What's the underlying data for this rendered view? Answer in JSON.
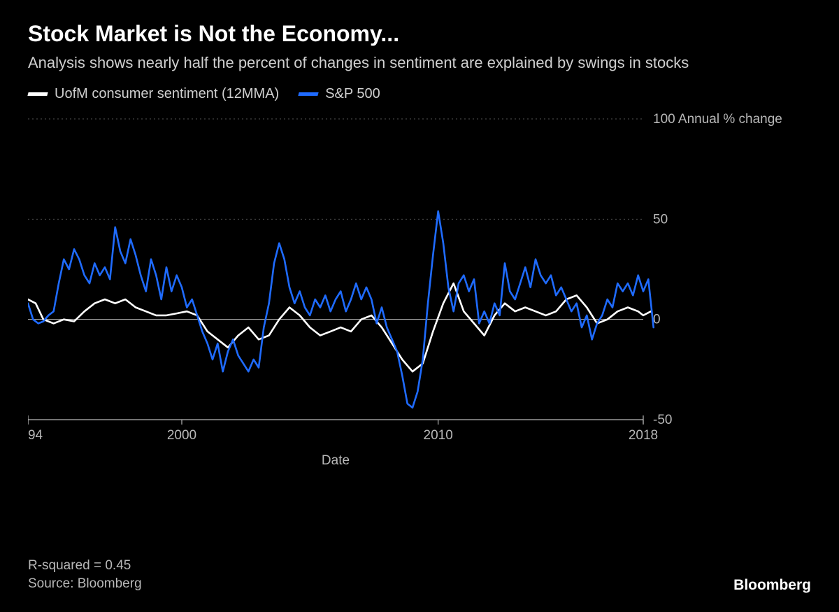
{
  "title": "Stock Market is Not the Economy...",
  "subtitle": "Analysis shows nearly half the percent of changes in sentiment are explained by swings in stocks",
  "legend": {
    "series1": {
      "label": "UofM consumer sentiment (12MMA)",
      "color": "#ffffff"
    },
    "series2": {
      "label": "S&P 500",
      "color": "#1f6bff"
    }
  },
  "chart": {
    "type": "line",
    "background_color": "#000000",
    "grid_color": "#555555",
    "axis_color": "#b8b8b8",
    "tick_color": "#b8b8b8",
    "x": {
      "label": "Date",
      "min": 1994,
      "max": 2018,
      "ticks": [
        1994,
        2000,
        2010,
        2018
      ]
    },
    "y": {
      "label_suffix": "Annual % change",
      "min": -50,
      "max": 100,
      "ticks": [
        -50,
        0,
        50,
        100
      ]
    },
    "line_width": 2.6,
    "series": [
      {
        "name": "UofM consumer sentiment (12MMA)",
        "color": "#ffffff",
        "data": [
          [
            1994.0,
            10
          ],
          [
            1994.3,
            8
          ],
          [
            1994.6,
            0
          ],
          [
            1995.0,
            -2
          ],
          [
            1995.4,
            0
          ],
          [
            1995.8,
            -1
          ],
          [
            1996.2,
            4
          ],
          [
            1996.6,
            8
          ],
          [
            1997.0,
            10
          ],
          [
            1997.4,
            8
          ],
          [
            1997.8,
            10
          ],
          [
            1998.2,
            6
          ],
          [
            1998.6,
            4
          ],
          [
            1999.0,
            2
          ],
          [
            1999.4,
            2
          ],
          [
            1999.8,
            3
          ],
          [
            2000.2,
            4
          ],
          [
            2000.6,
            2
          ],
          [
            2001.0,
            -6
          ],
          [
            2001.4,
            -10
          ],
          [
            2001.8,
            -14
          ],
          [
            2002.2,
            -8
          ],
          [
            2002.6,
            -4
          ],
          [
            2003.0,
            -10
          ],
          [
            2003.4,
            -8
          ],
          [
            2003.8,
            0
          ],
          [
            2004.2,
            6
          ],
          [
            2004.6,
            2
          ],
          [
            2005.0,
            -4
          ],
          [
            2005.4,
            -8
          ],
          [
            2005.8,
            -6
          ],
          [
            2006.2,
            -4
          ],
          [
            2006.6,
            -6
          ],
          [
            2007.0,
            0
          ],
          [
            2007.4,
            2
          ],
          [
            2007.8,
            -4
          ],
          [
            2008.2,
            -12
          ],
          [
            2008.6,
            -20
          ],
          [
            2009.0,
            -26
          ],
          [
            2009.4,
            -22
          ],
          [
            2009.8,
            -6
          ],
          [
            2010.2,
            8
          ],
          [
            2010.6,
            18
          ],
          [
            2011.0,
            4
          ],
          [
            2011.4,
            -2
          ],
          [
            2011.8,
            -8
          ],
          [
            2012.2,
            2
          ],
          [
            2012.6,
            8
          ],
          [
            2013.0,
            4
          ],
          [
            2013.4,
            6
          ],
          [
            2013.8,
            4
          ],
          [
            2014.2,
            2
          ],
          [
            2014.6,
            4
          ],
          [
            2015.0,
            10
          ],
          [
            2015.4,
            12
          ],
          [
            2015.8,
            6
          ],
          [
            2016.2,
            -2
          ],
          [
            2016.6,
            0
          ],
          [
            2017.0,
            4
          ],
          [
            2017.4,
            6
          ],
          [
            2017.8,
            4
          ],
          [
            2018.0,
            2
          ],
          [
            2018.3,
            4
          ]
        ]
      },
      {
        "name": "S&P 500",
        "color": "#1f6bff",
        "data": [
          [
            1994.0,
            8
          ],
          [
            1994.2,
            0
          ],
          [
            1994.4,
            -2
          ],
          [
            1994.6,
            -1
          ],
          [
            1994.8,
            2
          ],
          [
            1995.0,
            4
          ],
          [
            1995.2,
            18
          ],
          [
            1995.4,
            30
          ],
          [
            1995.6,
            25
          ],
          [
            1995.8,
            35
          ],
          [
            1996.0,
            30
          ],
          [
            1996.2,
            22
          ],
          [
            1996.4,
            18
          ],
          [
            1996.6,
            28
          ],
          [
            1996.8,
            22
          ],
          [
            1997.0,
            26
          ],
          [
            1997.2,
            20
          ],
          [
            1997.4,
            46
          ],
          [
            1997.6,
            34
          ],
          [
            1997.8,
            28
          ],
          [
            1998.0,
            40
          ],
          [
            1998.2,
            32
          ],
          [
            1998.4,
            22
          ],
          [
            1998.6,
            14
          ],
          [
            1998.8,
            30
          ],
          [
            1999.0,
            22
          ],
          [
            1999.2,
            10
          ],
          [
            1999.4,
            26
          ],
          [
            1999.6,
            14
          ],
          [
            1999.8,
            22
          ],
          [
            2000.0,
            16
          ],
          [
            2000.2,
            6
          ],
          [
            2000.4,
            10
          ],
          [
            2000.6,
            2
          ],
          [
            2000.8,
            -6
          ],
          [
            2001.0,
            -12
          ],
          [
            2001.2,
            -20
          ],
          [
            2001.4,
            -12
          ],
          [
            2001.6,
            -26
          ],
          [
            2001.8,
            -16
          ],
          [
            2002.0,
            -10
          ],
          [
            2002.2,
            -18
          ],
          [
            2002.4,
            -22
          ],
          [
            2002.6,
            -26
          ],
          [
            2002.8,
            -20
          ],
          [
            2003.0,
            -24
          ],
          [
            2003.2,
            -4
          ],
          [
            2003.4,
            8
          ],
          [
            2003.6,
            28
          ],
          [
            2003.8,
            38
          ],
          [
            2004.0,
            30
          ],
          [
            2004.2,
            16
          ],
          [
            2004.4,
            8
          ],
          [
            2004.6,
            14
          ],
          [
            2004.8,
            6
          ],
          [
            2005.0,
            2
          ],
          [
            2005.2,
            10
          ],
          [
            2005.4,
            6
          ],
          [
            2005.6,
            12
          ],
          [
            2005.8,
            4
          ],
          [
            2006.0,
            10
          ],
          [
            2006.2,
            14
          ],
          [
            2006.4,
            4
          ],
          [
            2006.6,
            10
          ],
          [
            2006.8,
            18
          ],
          [
            2007.0,
            10
          ],
          [
            2007.2,
            16
          ],
          [
            2007.4,
            10
          ],
          [
            2007.6,
            -2
          ],
          [
            2007.8,
            6
          ],
          [
            2008.0,
            -4
          ],
          [
            2008.2,
            -10
          ],
          [
            2008.4,
            -16
          ],
          [
            2008.6,
            -28
          ],
          [
            2008.8,
            -42
          ],
          [
            2009.0,
            -44
          ],
          [
            2009.2,
            -36
          ],
          [
            2009.4,
            -20
          ],
          [
            2009.6,
            8
          ],
          [
            2009.8,
            32
          ],
          [
            2010.0,
            54
          ],
          [
            2010.2,
            38
          ],
          [
            2010.4,
            16
          ],
          [
            2010.6,
            4
          ],
          [
            2010.8,
            18
          ],
          [
            2011.0,
            22
          ],
          [
            2011.2,
            14
          ],
          [
            2011.4,
            20
          ],
          [
            2011.6,
            -2
          ],
          [
            2011.8,
            4
          ],
          [
            2012.0,
            -2
          ],
          [
            2012.2,
            8
          ],
          [
            2012.4,
            2
          ],
          [
            2012.6,
            28
          ],
          [
            2012.8,
            14
          ],
          [
            2013.0,
            10
          ],
          [
            2013.2,
            18
          ],
          [
            2013.4,
            26
          ],
          [
            2013.6,
            16
          ],
          [
            2013.8,
            30
          ],
          [
            2014.0,
            22
          ],
          [
            2014.2,
            18
          ],
          [
            2014.4,
            22
          ],
          [
            2014.6,
            12
          ],
          [
            2014.8,
            16
          ],
          [
            2015.0,
            10
          ],
          [
            2015.2,
            4
          ],
          [
            2015.4,
            8
          ],
          [
            2015.6,
            -4
          ],
          [
            2015.8,
            2
          ],
          [
            2016.0,
            -10
          ],
          [
            2016.2,
            -2
          ],
          [
            2016.4,
            2
          ],
          [
            2016.6,
            10
          ],
          [
            2016.8,
            6
          ],
          [
            2017.0,
            18
          ],
          [
            2017.2,
            14
          ],
          [
            2017.4,
            18
          ],
          [
            2017.6,
            12
          ],
          [
            2017.8,
            22
          ],
          [
            2018.0,
            14
          ],
          [
            2018.2,
            20
          ],
          [
            2018.4,
            -4
          ]
        ]
      }
    ]
  },
  "footer": {
    "r_squared": "R-squared = 0.45",
    "source": "Source: Bloomberg"
  },
  "brand": "Bloomberg"
}
